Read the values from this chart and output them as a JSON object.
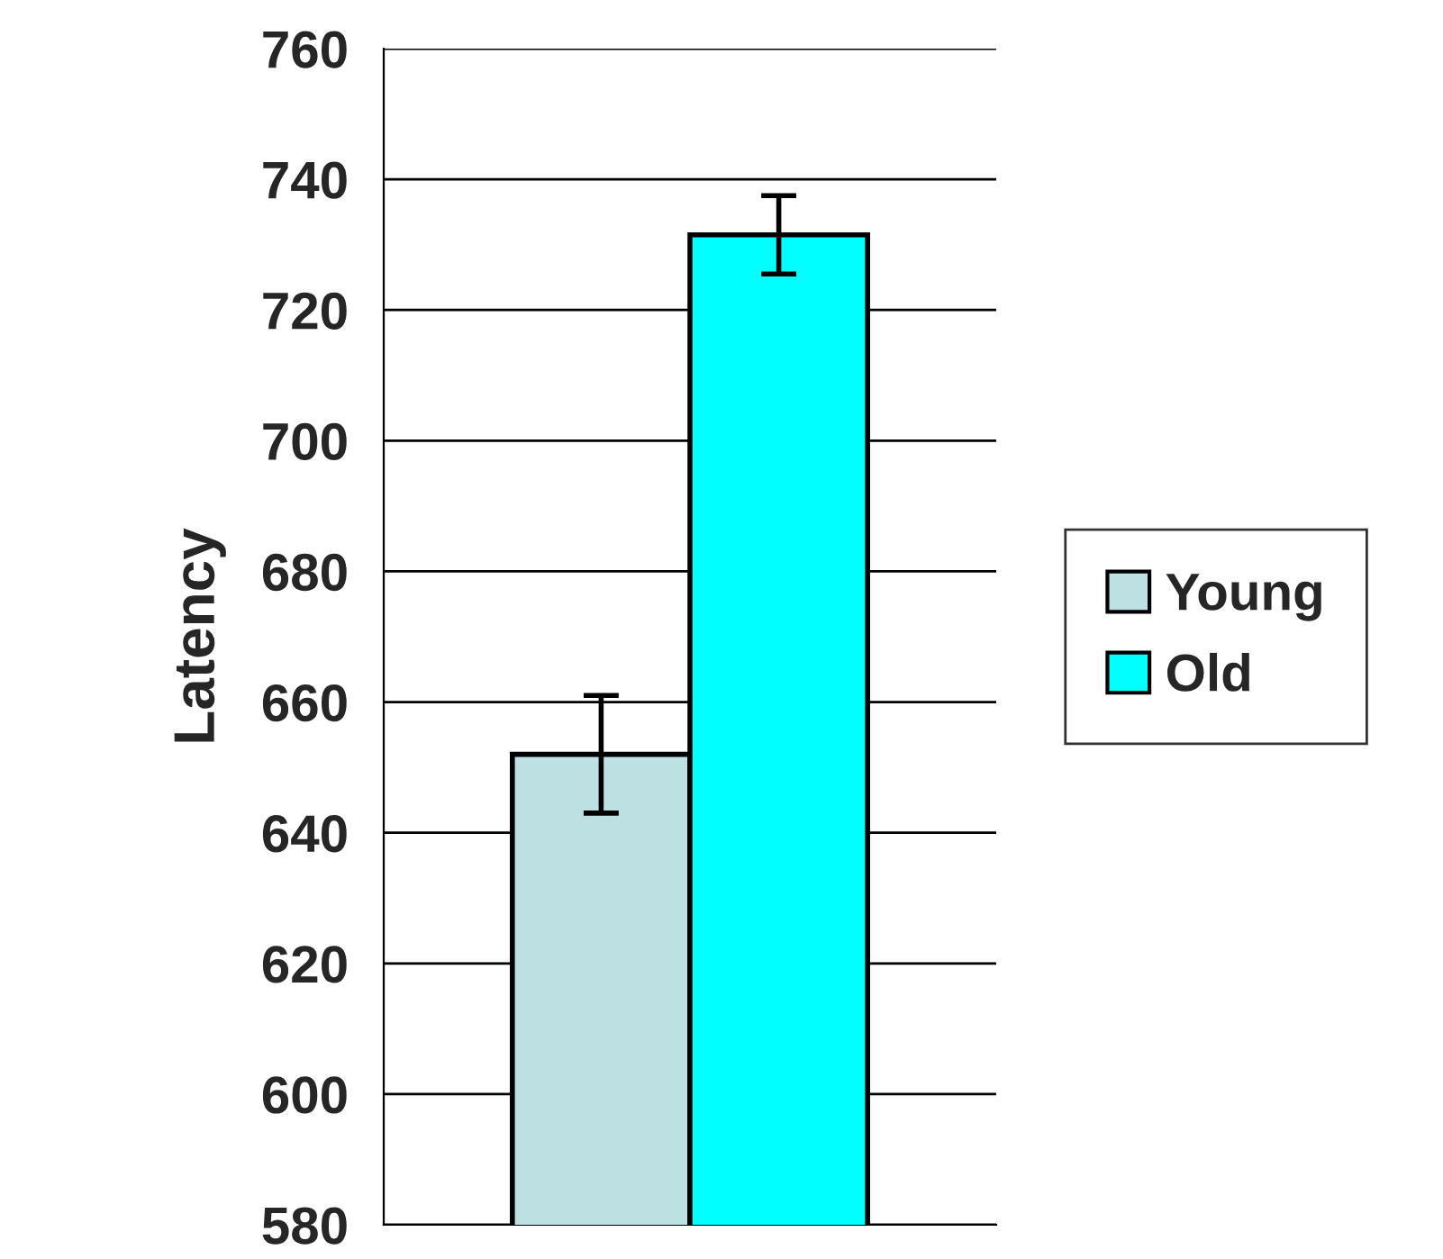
{
  "chart_data": {
    "type": "bar",
    "ylabel": "Latency",
    "categories": [
      null
    ],
    "series": [
      {
        "name": "Young",
        "color": "#bde0e3",
        "values": [
          652
        ],
        "errors": [
          9
        ]
      },
      {
        "name": "Old",
        "color": "#00ffff",
        "values": [
          731.5
        ],
        "errors": [
          6
        ]
      }
    ],
    "ylim": [
      580,
      760
    ],
    "yticks": [
      580,
      600,
      620,
      640,
      660,
      680,
      700,
      720,
      740,
      760
    ],
    "grid": "y",
    "legend": "right"
  }
}
